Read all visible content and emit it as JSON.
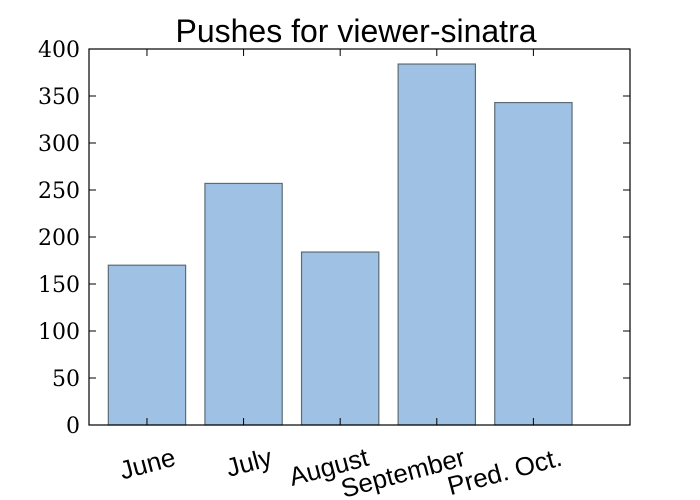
{
  "chart_data": {
    "type": "bar",
    "title": "Pushes for viewer-sinatra",
    "xlabel": "",
    "ylabel": "",
    "categories": [
      "June",
      "July",
      "August",
      "September",
      "Pred. Oct."
    ],
    "values": [
      170,
      257,
      184,
      384,
      343
    ],
    "ylim": [
      0,
      400
    ],
    "yticks": [
      0,
      50,
      100,
      150,
      200,
      250,
      300,
      350,
      400
    ],
    "xlim": [
      -0.6,
      5.0
    ],
    "bar_width": 0.8,
    "grid": false,
    "legend": "none",
    "colors": {
      "bar_fill": "#9fc2e4",
      "bar_edge": "#5d6b75",
      "axis": "#000000",
      "background": "#ffffff"
    }
  }
}
